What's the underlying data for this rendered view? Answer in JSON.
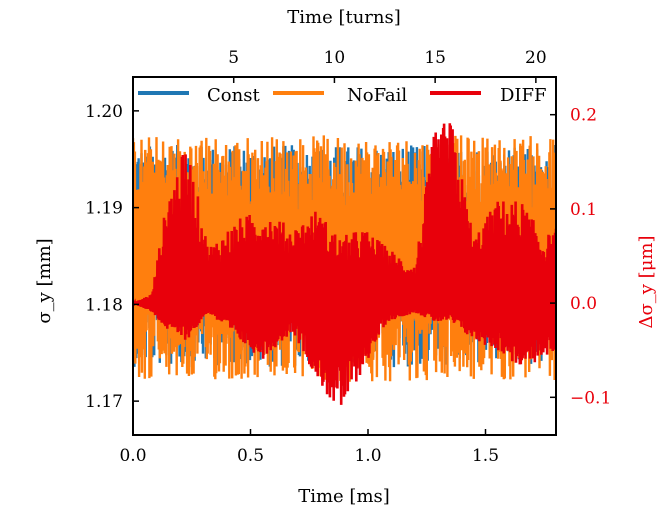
{
  "chart_data": {
    "type": "line",
    "xlabel": "Time [ms]",
    "xlim": [
      0.0,
      1.8
    ],
    "xticks": [
      "0.0",
      "0.5",
      "1.0",
      "1.5"
    ],
    "xtick_values": [
      0.0,
      0.5,
      1.0,
      1.5
    ],
    "top_xlabel": "Time [turns]",
    "top_xticks": [
      "5",
      "10",
      "15",
      "20"
    ],
    "top_xtick_values": [
      5,
      10,
      15,
      20
    ],
    "top_xlim": [
      0,
      21
    ],
    "ylabel": "σ_y [mm]",
    "ylim": [
      1.1665,
      1.2035
    ],
    "yticks": [
      "1.17",
      "1.18",
      "1.19",
      "1.20"
    ],
    "ytick_values": [
      1.17,
      1.18,
      1.19,
      1.2
    ],
    "y2label": "Δσ_y [μm]",
    "y2lim": [
      -0.14,
      0.24
    ],
    "y2ticks": [
      "−0.1",
      "0.0",
      "0.1",
      "0.2"
    ],
    "y2tick_values": [
      -0.1,
      0.0,
      0.1,
      0.2
    ],
    "legend_placement": "top",
    "series": [
      {
        "name": "Const",
        "color": "#1f77b4",
        "axis": "left",
        "center": 1.186,
        "amp_lo": 0.0125,
        "amp_hi": 0.0105,
        "note_values_mm": [
          1.1735,
          1.1965
        ]
      },
      {
        "name": "NoFail",
        "color": "#ff7f0e",
        "axis": "left",
        "center": 1.1855,
        "amp_lo": 0.0135,
        "amp_hi": 0.012,
        "note_values_mm": [
          1.172,
          1.1975
        ]
      },
      {
        "name": "DIFF",
        "color": "#e8000b",
        "axis": "right",
        "envelope_x_ms": [
          0.0,
          0.08,
          0.15,
          0.23,
          0.32,
          0.45,
          0.55,
          0.68,
          0.78,
          0.88,
          0.98,
          1.08,
          1.2,
          1.28,
          1.35,
          1.45,
          1.55,
          1.65,
          1.75,
          1.8
        ],
        "envelope_lo": [
          0.0,
          -0.01,
          -0.03,
          -0.04,
          -0.01,
          -0.04,
          -0.06,
          -0.03,
          -0.08,
          -0.12,
          -0.07,
          -0.02,
          -0.01,
          -0.02,
          -0.02,
          -0.04,
          -0.05,
          -0.07,
          -0.06,
          -0.05
        ],
        "envelope_hi": [
          0.0,
          0.01,
          0.12,
          0.17,
          0.06,
          0.09,
          0.1,
          0.08,
          0.1,
          0.07,
          0.08,
          0.06,
          0.04,
          0.18,
          0.2,
          0.07,
          0.11,
          0.11,
          0.07,
          0.08
        ]
      }
    ]
  }
}
